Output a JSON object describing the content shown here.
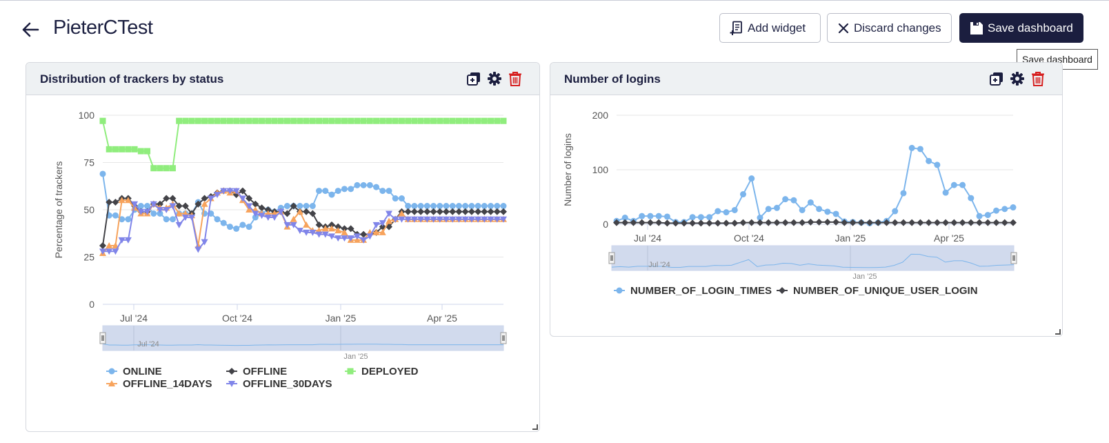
{
  "header": {
    "title": "PieterCTest",
    "add_widget_label": "Add widget",
    "discard_label": "Discard changes",
    "save_label": "Save dashboard",
    "tooltip": "Save dashboard"
  },
  "colors": {
    "navy": "#1b1e3f",
    "online": "#7cb5ec",
    "offline": "#434348",
    "deployed": "#90ed7d",
    "offline14": "#f7a35c",
    "offline30": "#8085e9",
    "delete": "#d62020"
  },
  "widgets": [
    {
      "title": "Distribution of trackers by status",
      "icons": [
        "duplicate-icon",
        "gear-icon",
        "trash-icon"
      ]
    },
    {
      "title": "Number of logins",
      "icons": [
        "duplicate-icon",
        "gear-icon",
        "trash-icon"
      ]
    }
  ],
  "chart_data": [
    {
      "type": "line",
      "ylabel": "Percentage of trackers",
      "ylim": [
        0,
        100
      ],
      "yticks": [
        "0",
        "25",
        "50",
        "75",
        "100"
      ],
      "xticks": [
        "Jul '24",
        "Oct '24",
        "Jan '25",
        "Apr '25"
      ],
      "navigator_labels": [
        "Jul '24",
        "Jan '25"
      ],
      "legend": "bottom-left",
      "x": [
        0,
        1,
        2,
        3,
        4,
        5,
        6,
        7,
        8,
        9,
        10,
        11,
        12,
        13,
        14,
        15,
        16,
        17,
        18,
        19,
        20,
        21,
        22,
        23,
        24,
        25,
        26,
        27,
        28,
        29,
        30,
        31,
        32,
        33,
        34,
        35,
        36,
        37,
        38,
        39,
        40,
        41,
        42,
        43,
        44,
        45,
        46,
        47,
        48,
        49,
        50,
        51,
        52,
        53,
        54,
        55,
        56,
        57,
        58,
        59,
        60,
        61,
        62,
        63
      ],
      "series": [
        {
          "name": "ONLINE",
          "values": [
            69,
            47,
            47,
            45,
            45,
            50,
            52,
            52,
            48,
            48,
            45,
            45,
            48,
            48,
            48,
            54,
            48,
            48,
            45,
            43,
            41,
            40,
            42,
            41,
            46,
            48,
            50,
            49,
            51,
            52,
            52,
            52,
            52,
            52,
            60,
            60,
            58,
            60,
            61,
            61,
            63,
            63,
            63,
            62,
            60,
            60,
            56,
            56,
            52,
            52,
            52,
            52,
            52,
            52,
            52,
            52,
            52,
            52,
            52,
            52,
            52,
            52,
            52,
            52
          ]
        },
        {
          "name": "OFFLINE",
          "values": [
            31,
            54,
            54,
            56,
            56,
            52,
            49,
            49,
            53,
            53,
            56,
            56,
            52,
            52,
            48,
            53,
            56,
            57,
            59,
            60,
            60,
            58,
            60,
            56,
            53,
            51,
            50,
            49,
            49,
            48,
            52,
            49,
            49,
            48,
            42,
            41,
            42,
            41,
            40,
            40,
            37,
            37,
            37,
            38,
            41,
            41,
            45,
            49,
            49,
            49,
            49,
            49,
            49,
            49,
            49,
            49,
            49,
            49,
            49,
            49,
            49,
            49,
            49,
            49
          ]
        },
        {
          "name": "DEPLOYED",
          "values": [
            97,
            82,
            82,
            82,
            82,
            82,
            81,
            81,
            72,
            72,
            72,
            72,
            97,
            97,
            97,
            97,
            97,
            97,
            97,
            97,
            97,
            97,
            97,
            97,
            97,
            97,
            97,
            97,
            97,
            97,
            97,
            97,
            97,
            97,
            97,
            97,
            97,
            97,
            97,
            97,
            97,
            97,
            97,
            97,
            97,
            97,
            97,
            97,
            97,
            97,
            97,
            97,
            97,
            97,
            97,
            97,
            97,
            97,
            97,
            97,
            97,
            97,
            97,
            97
          ]
        },
        {
          "name": "OFFLINE_14DAYS",
          "values": [
            27,
            31,
            31,
            55,
            55,
            51,
            48,
            48,
            53,
            51,
            51,
            53,
            48,
            48,
            47,
            31,
            53,
            56,
            59,
            60,
            59,
            60,
            55,
            50,
            50,
            48,
            48,
            48,
            49,
            41,
            45,
            49,
            42,
            39,
            39,
            40,
            40,
            39,
            38,
            34,
            34,
            34,
            38,
            38,
            38,
            44,
            45,
            48,
            45,
            45,
            45,
            45,
            45,
            45,
            45,
            45,
            45,
            45,
            45,
            45,
            45,
            45,
            45,
            45
          ]
        },
        {
          "name": "OFFLINE_30DAYS",
          "values": [
            28,
            28,
            28,
            34,
            34,
            53,
            49,
            49,
            53,
            50,
            50,
            52,
            42,
            46,
            46,
            29,
            33,
            56,
            58,
            60,
            60,
            60,
            56,
            52,
            48,
            47,
            46,
            46,
            49,
            42,
            42,
            39,
            38,
            38,
            37,
            37,
            36,
            35,
            35,
            35,
            36,
            34,
            36,
            42,
            43,
            48,
            45,
            45,
            45,
            45,
            45,
            45,
            45,
            45,
            45,
            45,
            45,
            45,
            45,
            45,
            45,
            45,
            45,
            45
          ]
        }
      ]
    },
    {
      "type": "line",
      "ylabel": "Number of logins",
      "ylim": [
        0,
        200
      ],
      "yticks": [
        "0",
        "100",
        "200"
      ],
      "xticks": [
        "Jul '24",
        "Oct '24",
        "Jan '25",
        "Apr '25"
      ],
      "navigator_labels": [
        "Jul '24",
        "Jan '25"
      ],
      "legend": "bottom-left",
      "series": [
        {
          "name": "NUMBER_OF_LOGIN_TIMES",
          "values": [
            6,
            12,
            6,
            15,
            15,
            15,
            14,
            4,
            4,
            13,
            13,
            13,
            24,
            22,
            26,
            55,
            84,
            12,
            28,
            30,
            46,
            44,
            26,
            40,
            28,
            23,
            19,
            5,
            4,
            3,
            2,
            3,
            6,
            24,
            57,
            140,
            138,
            116,
            109,
            58,
            72,
            72,
            48,
            15,
            17,
            25,
            28,
            31
          ]
        },
        {
          "name": "NUMBER_OF_UNIQUE_USER_LOGIN",
          "values": [
            3,
            3,
            3,
            3,
            3,
            3,
            2,
            2,
            2,
            2,
            2,
            2,
            2,
            2,
            2,
            3,
            3,
            3,
            3,
            3,
            3,
            3,
            3,
            4,
            4,
            4,
            4,
            3,
            3,
            3,
            3,
            3,
            3,
            3,
            3,
            3,
            3,
            3,
            3,
            3,
            3,
            3,
            3,
            3,
            3,
            3,
            3,
            3
          ]
        }
      ]
    }
  ]
}
